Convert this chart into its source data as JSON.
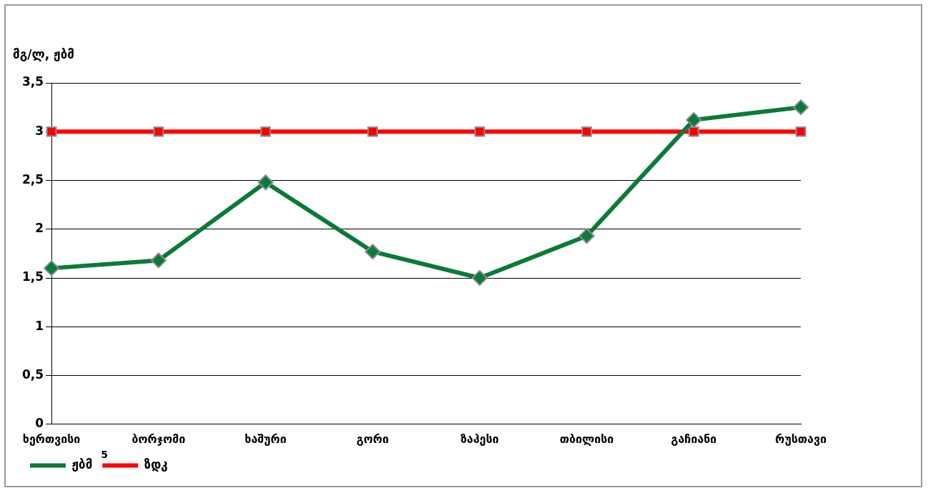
{
  "chart_data": {
    "type": "line",
    "ylabel": "მგ/ლ, ჟბმ",
    "categories": [
      "ხერთვისი",
      "ბორჯომი",
      "ხაშური",
      "გორი",
      "ზაჰესი",
      "თბილისი",
      "გაჩიანი",
      "რუსთავი"
    ],
    "series": [
      {
        "name": "ჟბმ",
        "color": "#0a7a3a",
        "marker": "diamond",
        "values": [
          1.6,
          1.68,
          2.48,
          1.77,
          1.5,
          1.93,
          3.12,
          3.25
        ]
      },
      {
        "name": "ზდკ",
        "color": "#ff0000",
        "marker": "square",
        "values": [
          3,
          3,
          3,
          3,
          3,
          3,
          3,
          3
        ]
      }
    ],
    "ylim": [
      0,
      3.5
    ],
    "yticks": [
      0,
      {
        "value": 0.5,
        "label": "0,5"
      },
      1,
      {
        "value": 1.5,
        "label": "1,5"
      },
      2,
      {
        "value": 2.5,
        "label": "2,5"
      },
      3,
      {
        "value": 3.5,
        "label": "3,5"
      }
    ],
    "grid": "y",
    "legend": "bottom left",
    "line_style": "solid",
    "annotations": [
      "5"
    ]
  }
}
